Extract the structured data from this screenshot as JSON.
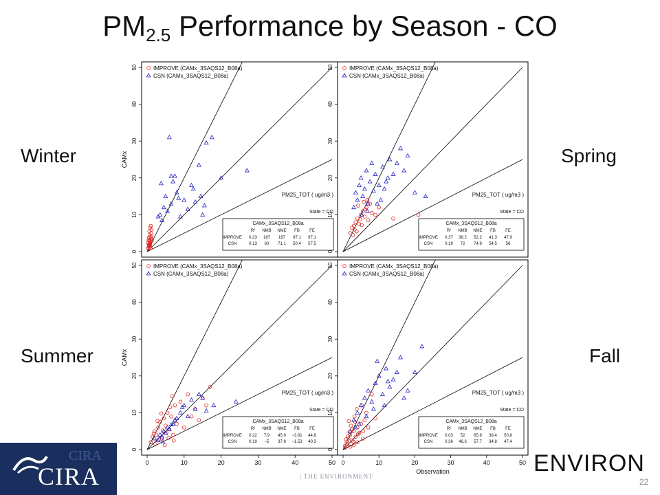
{
  "title": {
    "main": "PM",
    "sub": "2.5",
    "rest": " Performance by Season - CO"
  },
  "seasons": {
    "winter": "Winter",
    "spring": "Spring",
    "summer": "Summer",
    "fall": "Fall"
  },
  "page_number": "22",
  "logos": {
    "cira": "CIRA",
    "environ": "ENVIRON",
    "faint_left": "CIRA",
    "faint_strip": "| THE ENVIRONMENT"
  },
  "colors": {
    "improve": "#e0201b",
    "csn": "#2323c8",
    "lines": "#000000",
    "title": "#111111",
    "cira_bg": "#1b2f5e"
  },
  "chart_data": [
    {
      "panel": "Winter",
      "type": "scatter",
      "xlabel": "",
      "ylabel": "CAMx",
      "xlim": [
        0,
        50
      ],
      "ylim": [
        0,
        50
      ],
      "ticks": [
        "0",
        "10",
        "20",
        "30",
        "40",
        "50"
      ],
      "legend": [
        "IMPROVE (CAMx_3SAQS12_B08a)",
        "CSN (CAMx_3SAQS12_B08a)"
      ],
      "legend_position": "top-left",
      "annotations": [
        "PM25_TOT  ( ug/m3 )",
        "State = CO"
      ],
      "stats_table": {
        "title": "CAMx_3SAQS12_B08a",
        "header": [
          "",
          "R²",
          "NMB",
          "NME",
          "FB",
          "FE"
        ],
        "rows": [
          [
            "IMPROVE",
            "0.23",
            "187",
            "187",
            "97.1",
            "97.1"
          ],
          [
            "CSN",
            "0.13",
            "60",
            "71.1",
            "50.4",
            "57.5"
          ]
        ]
      },
      "series": [
        {
          "name": "IMPROVE (CAMx_3SAQS12_B08a)",
          "marker": "circle",
          "x": [
            0.3,
            0.5,
            0.6,
            0.7,
            0.8,
            0.9,
            1.0,
            1.1,
            1.2,
            0.4,
            0.6,
            0.8,
            0.5,
            0.9,
            1.1,
            0.7,
            0.3,
            1.3,
            0.6,
            0.8,
            1.0,
            0.5,
            0.7,
            0.9,
            1.2,
            0.4,
            0.6
          ],
          "y": [
            1.0,
            2.0,
            3.0,
            4.5,
            1.5,
            2.5,
            3.5,
            5.0,
            6.0,
            0.8,
            1.2,
            2.2,
            3.8,
            4.0,
            2.8,
            1.8,
            2.4,
            3.2,
            5.5,
            6.5,
            7.0,
            1.6,
            2.9,
            0.9,
            4.2,
            3.1,
            2.0
          ]
        },
        {
          "name": "CSN (CAMx_3SAQS12_B08a)",
          "marker": "triangle",
          "x": [
            3.0,
            3.5,
            4.0,
            4.5,
            5.0,
            5.5,
            6.0,
            6.5,
            7.0,
            7.5,
            8.0,
            9.0,
            10.0,
            11.0,
            12.0,
            13.0,
            14.0,
            15.0,
            16.0,
            17.5,
            20.0,
            27.0,
            6.5,
            14.5,
            15.5,
            3.8,
            8.5,
            12.5
          ],
          "y": [
            9.5,
            10.0,
            8.5,
            12.0,
            15.0,
            11.0,
            31.0,
            13.0,
            19.0,
            20.5,
            16.0,
            9.5,
            14.0,
            11.5,
            18.0,
            13.5,
            23.5,
            10.0,
            29.5,
            31.0,
            20.0,
            22.0,
            20.5,
            15.0,
            12.5,
            18.5,
            14.5,
            17.0
          ]
        }
      ]
    },
    {
      "panel": "Spring",
      "type": "scatter",
      "xlabel": "",
      "ylabel": "",
      "xlim": [
        0,
        50
      ],
      "ylim": [
        0,
        50
      ],
      "ticks": [
        "0",
        "10",
        "20",
        "30",
        "40",
        "50"
      ],
      "legend": [
        "IMPROVE (CAMx_3SAQS12_B08a)",
        "CSN (CAMx_3SAQS12_B08a)"
      ],
      "legend_position": "top-left",
      "annotations": [
        "PM25_TOT  ( ug/m3 )",
        "State = CO"
      ],
      "stats_table": {
        "title": "CAMx_3SAQS12_B08a",
        "header": [
          "",
          "R²",
          "NMB",
          "NME",
          "FB",
          "FE"
        ],
        "rows": [
          [
            "IMPROVE",
            "0.37",
            "38.2",
            "52.2",
            "41.3",
            "47.9"
          ],
          [
            "CSN",
            "0.19",
            "72",
            "74.9",
            "54.5",
            "56"
          ]
        ]
      },
      "series": [
        {
          "name": "IMPROVE (CAMx_3SAQS12_B08a)",
          "marker": "circle",
          "x": [
            2.0,
            2.5,
            3.0,
            3.5,
            4.0,
            4.5,
            5.0,
            5.5,
            6.0,
            6.5,
            7.0,
            7.5,
            8.0,
            3.2,
            4.8,
            2.8,
            6.2,
            5.2,
            4.2,
            3.8,
            9.0,
            10.0,
            14.0,
            21.0,
            6.8,
            5.8
          ],
          "y": [
            5.0,
            6.5,
            7.0,
            8.0,
            9.0,
            7.5,
            10.0,
            11.0,
            9.5,
            12.0,
            8.5,
            13.0,
            10.5,
            6.0,
            8.8,
            4.5,
            11.5,
            7.2,
            12.5,
            5.5,
            10.0,
            12.0,
            9.0,
            10.0,
            14.0,
            13.5
          ]
        },
        {
          "name": "CSN (CAMx_3SAQS12_B08a)",
          "marker": "triangle",
          "x": [
            3.0,
            3.5,
            4.0,
            4.5,
            5.0,
            5.5,
            6.0,
            6.5,
            7.0,
            7.5,
            8.0,
            8.5,
            9.0,
            10.0,
            10.5,
            11.0,
            12.0,
            13.0,
            14.0,
            15.0,
            16.0,
            17.0,
            18.0,
            20.0,
            23.0,
            5.2,
            6.8,
            9.5,
            11.5,
            12.5
          ],
          "y": [
            12.0,
            16.0,
            14.0,
            18.0,
            20.0,
            15.0,
            17.0,
            22.0,
            13.0,
            19.0,
            24.0,
            16.5,
            21.0,
            18.0,
            14.0,
            23.0,
            19.0,
            25.0,
            21.0,
            24.0,
            28.0,
            22.0,
            26.0,
            16.0,
            15.0,
            10.0,
            11.0,
            13.0,
            17.0,
            20.0
          ]
        }
      ]
    },
    {
      "panel": "Summer",
      "type": "scatter",
      "xlabel": "",
      "ylabel": "CAMx",
      "xlim": [
        0,
        50
      ],
      "ylim": [
        0,
        50
      ],
      "ticks": [
        "0",
        "10",
        "20",
        "30",
        "40",
        "50"
      ],
      "legend": [
        "IMPROVE (CAMx_3SAQS12_B08a)",
        "CSN (CAMx_3SAQS12_B08a)"
      ],
      "legend_position": "top-left",
      "annotations": [
        "PM25_TOT  ( ug/m3 )",
        "State = CO"
      ],
      "stats_table": {
        "title": "CAMx_3SAQS12_B08a",
        "header": [
          "",
          "R²",
          "NMB",
          "NME",
          "FB",
          "FE"
        ],
        "rows": [
          [
            "IMPROVE",
            "0.22",
            "7.9",
            "45.9",
            "−3.91",
            "44.8"
          ],
          [
            "CSN",
            "0.19",
            "−5",
            "37.8",
            "−1.53",
            "40.3"
          ]
        ]
      },
      "series": [
        {
          "name": "IMPROVE (CAMx_3SAQS12_B08a)",
          "marker": "circle",
          "x": [
            1.0,
            1.5,
            2.0,
            2.5,
            3.0,
            3.5,
            4.0,
            4.5,
            5.0,
            5.5,
            6.0,
            6.5,
            7.0,
            7.5,
            8.0,
            9.0,
            10.0,
            11.0,
            12.0,
            13.0,
            14.0,
            15.0,
            16.0,
            17.0,
            2.2,
            3.2,
            4.2,
            5.2,
            6.2,
            3.8,
            4.8,
            2.8,
            5.8,
            1.8,
            7.2,
            6.8
          ],
          "y": [
            2.0,
            3.5,
            5.0,
            4.0,
            6.0,
            7.5,
            3.0,
            8.5,
            6.5,
            10.0,
            5.5,
            9.0,
            4.0,
            12.0,
            7.0,
            13.0,
            6.0,
            15.0,
            9.0,
            11.0,
            8.0,
            14.0,
            12.0,
            17.0,
            1.5,
            2.8,
            5.2,
            4.5,
            11.5,
            9.8,
            1.2,
            7.8,
            3.2,
            4.4,
            2.5,
            14.5
          ]
        },
        {
          "name": "CSN (CAMx_3SAQS12_B08a)",
          "marker": "triangle",
          "x": [
            2.0,
            3.0,
            3.5,
            4.0,
            4.5,
            5.0,
            5.5,
            6.0,
            7.0,
            8.0,
            9.0,
            10.0,
            11.0,
            12.0,
            13.0,
            14.0,
            15.0,
            16.0,
            18.0,
            24.0,
            4.2,
            6.5,
            7.5,
            9.5
          ],
          "y": [
            3.0,
            2.5,
            4.0,
            3.5,
            5.0,
            4.5,
            6.0,
            5.5,
            7.0,
            8.5,
            10.0,
            12.0,
            9.0,
            13.5,
            11.0,
            15.0,
            14.0,
            10.5,
            12.0,
            13.0,
            2.2,
            6.8,
            8.0,
            11.5
          ]
        }
      ]
    },
    {
      "panel": "Fall",
      "type": "scatter",
      "xlabel": "Observation",
      "ylabel": "",
      "xlim": [
        0,
        50
      ],
      "ylim": [
        0,
        50
      ],
      "ticks": [
        "0",
        "10",
        "20",
        "30",
        "40",
        "50"
      ],
      "legend": [
        "IMPROVE (CAMx_3SAQS12_B08a)",
        "CSN (CAMx_3SAQS12_B08a)"
      ],
      "legend_position": "top-left",
      "annotations": [
        "PM25_TOT  ( ug/m3 )",
        "State = CO"
      ],
      "stats_table": {
        "title": "CAMx_3SAQS12_B08a",
        "header": [
          "",
          "R²",
          "NMB",
          "NME",
          "FB",
          "FE"
        ],
        "rows": [
          [
            "IMPROVE",
            "0.03",
            "52",
            "65.8",
            "38.4",
            "50.8"
          ],
          [
            "CSN",
            "0.36",
            "46.6",
            "57.7",
            "34.8",
            "47.4"
          ]
        ]
      },
      "series": [
        {
          "name": "IMPROVE (CAMx_3SAQS12_B08a)",
          "marker": "circle",
          "x": [
            0.5,
            1.0,
            1.5,
            2.0,
            2.5,
            3.0,
            3.5,
            4.0,
            4.5,
            5.0,
            5.5,
            6.0,
            1.2,
            1.8,
            2.2,
            2.8,
            3.2,
            3.8,
            0.8,
            1.4,
            2.6,
            3.4,
            4.2,
            5.2,
            6.5,
            7.0,
            8.0,
            9.0,
            3.0,
            4.0,
            2.0,
            1.6,
            5.6,
            0.6
          ],
          "y": [
            1.0,
            2.0,
            3.0,
            4.0,
            2.5,
            5.0,
            3.5,
            6.0,
            4.5,
            7.0,
            3.0,
            8.0,
            1.5,
            4.8,
            6.5,
            2.2,
            9.0,
            11.0,
            2.8,
            3.6,
            5.5,
            7.5,
            4.2,
            12.0,
            10.0,
            6.0,
            15.0,
            8.5,
            1.2,
            2.0,
            0.8,
            7.8,
            5.0,
            0.5
          ]
        },
        {
          "name": "CSN (CAMx_3SAQS12_B08a)",
          "marker": "triangle",
          "x": [
            2.0,
            3.0,
            4.0,
            5.0,
            6.0,
            7.0,
            8.0,
            9.0,
            10.0,
            11.0,
            12.0,
            13.0,
            14.0,
            15.0,
            16.0,
            17.0,
            18.0,
            20.0,
            22.0,
            8.5,
            6.5,
            9.5,
            11.5,
            12.5,
            4.5,
            3.5
          ],
          "y": [
            5.0,
            8.0,
            10.0,
            12.0,
            14.0,
            16.0,
            13.0,
            18.0,
            20.0,
            15.0,
            22.0,
            17.0,
            19.0,
            21.0,
            25.0,
            14.0,
            16.0,
            21.0,
            28.0,
            11.0,
            9.0,
            24.0,
            12.0,
            18.5,
            7.0,
            6.0
          ]
        }
      ]
    }
  ]
}
